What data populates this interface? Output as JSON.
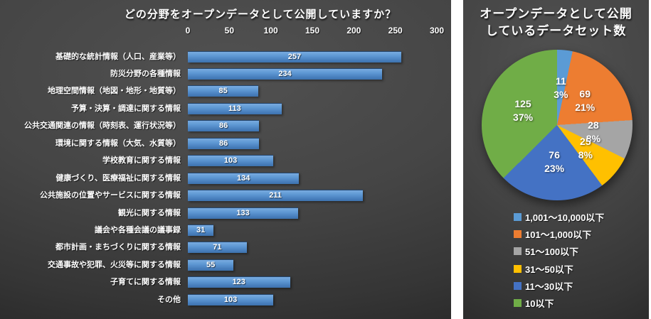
{
  "bar_chart": {
    "title": "どの分野をオープンデータとして公開していますか？"
  },
  "pie_chart": {
    "title_line1": "オープンデータとして公開",
    "title_line2": "しているデータセット数"
  },
  "chart_data": [
    {
      "type": "bar",
      "orientation": "horizontal",
      "title": "どの分野をオープンデータとして公開していますか？",
      "categories": [
        "基礎的な統計情報（人口、産業等）",
        "防災分野の各種情報",
        "地理空間情報（地図・地形・地質等）",
        "予算・決算・調達に関する情報",
        "公共交通関連の情報（時刻表、運行状況等）",
        "環境に関する情報（大気、水質等）",
        "学校教育に関する情報",
        "健康づくり、医療福祉に関する情報",
        "公共施設の位置やサービスに関する情報",
        "観光に関する情報",
        "議会や各種会議の議事録",
        "都市計画・まちづくりに関する情報",
        "交通事故や犯罪、火災等に関する情報",
        "子育てに関する情報",
        "その他"
      ],
      "values": [
        257,
        234,
        85,
        113,
        86,
        86,
        103,
        134,
        211,
        133,
        31,
        71,
        55,
        123,
        103
      ],
      "xlim": [
        0,
        300
      ],
      "xticks": [
        0,
        50,
        100,
        150,
        200,
        250,
        300
      ],
      "bar_color": "#5B9BD5",
      "grid": false,
      "value_labels": true
    },
    {
      "type": "pie",
      "title": "オープンデータとして公開しているデータセット数",
      "labels": [
        "1,001～10,000以下",
        "101～1,000以下",
        "51～100以下",
        "31～50以下",
        "11～30以下",
        "10以下"
      ],
      "values": [
        11,
        69,
        28,
        25,
        76,
        125
      ],
      "pct_labels": [
        "3%",
        "21%",
        "8%",
        "8%",
        "23%",
        "37%"
      ],
      "colors": [
        "#5B9BD5",
        "#ED7D31",
        "#A5A5A5",
        "#FFC000",
        "#4472C4",
        "#70AD47"
      ],
      "legend_position": "bottom",
      "start_angle": 0
    }
  ]
}
